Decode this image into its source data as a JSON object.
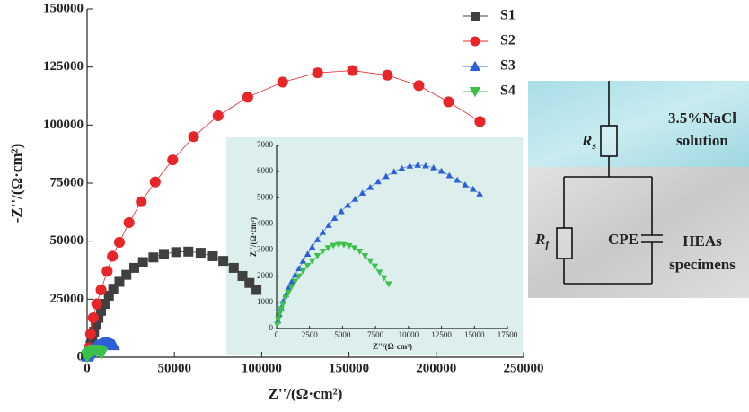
{
  "chart_data": [
    {
      "type": "line",
      "xlabel": "Z''/(Ω·cm²)",
      "ylabel": "-Z''/(Ω·cm²)",
      "xlim": [
        0,
        250000
      ],
      "ylim": [
        0,
        150000
      ],
      "xticks": [
        0,
        50000,
        100000,
        150000,
        200000,
        250000
      ],
      "yticks": [
        0,
        25000,
        50000,
        75000,
        100000,
        125000,
        150000
      ],
      "legend": "upper right",
      "series": [
        {
          "name": "S1",
          "color": "#404040",
          "marker": "square",
          "x": [
            1000,
            2000,
            3000,
            4000,
            5000,
            6500,
            8000,
            10000,
            12500,
            15000,
            18500,
            22500,
            27000,
            32000,
            38000,
            44000,
            51000,
            58000,
            65000,
            72000,
            78000,
            84000,
            89000,
            93000,
            97000
          ],
          "values": [
            2000,
            5000,
            8000,
            11000,
            14000,
            17000,
            20000,
            23000,
            26500,
            29500,
            32500,
            35500,
            38500,
            41000,
            43000,
            44500,
            45300,
            45500,
            45000,
            43500,
            41500,
            38500,
            35000,
            32000,
            29000
          ]
        },
        {
          "name": "S2",
          "color": "#e8262a",
          "marker": "circle",
          "x": [
            1000,
            2000,
            3500,
            5500,
            8000,
            11500,
            14500,
            18500,
            24000,
            31000,
            39000,
            49000,
            61000,
            75000,
            92000,
            112000,
            132000,
            152000,
            172000,
            190000,
            207000,
            225000
          ],
          "values": [
            4000,
            10000,
            17000,
            23000,
            29000,
            37000,
            43500,
            49500,
            58000,
            67000,
            75500,
            85000,
            95000,
            104000,
            112000,
            118500,
            122500,
            123500,
            121500,
            117000,
            110000,
            101500
          ]
        },
        {
          "name": "S3",
          "color": "#2f5fd8",
          "marker": "triangle-up",
          "x": [
            100,
            200,
            350,
            500,
            700,
            900,
            1150,
            1400,
            1700,
            2000,
            2350,
            2700,
            3100,
            3500,
            3950,
            4400,
            4900,
            5400,
            5950,
            6500,
            7100,
            7700,
            8300,
            8900,
            9500,
            10100,
            10700,
            11300,
            11900,
            12500,
            13100,
            13700,
            14300,
            14900,
            15400
          ],
          "values": [
            300,
            550,
            800,
            1050,
            1300,
            1550,
            1800,
            2050,
            2300,
            2580,
            2850,
            3120,
            3400,
            3680,
            3950,
            4220,
            4480,
            4720,
            4950,
            5180,
            5400,
            5620,
            5820,
            6000,
            6130,
            6220,
            6250,
            6230,
            6150,
            6020,
            5850,
            5680,
            5500,
            5330,
            5150
          ]
        },
        {
          "name": "S4",
          "color": "#3cc04a",
          "marker": "triangle-down",
          "x": [
            50,
            120,
            220,
            350,
            500,
            700,
            900,
            1150,
            1400,
            1700,
            2000,
            2350,
            2700,
            3100,
            3500,
            3900,
            4300,
            4700,
            5100,
            5500,
            5900,
            6300,
            6700,
            7100,
            7450,
            7800,
            8150,
            8500
          ],
          "values": [
            150,
            350,
            550,
            750,
            950,
            1180,
            1380,
            1600,
            1800,
            2000,
            2200,
            2400,
            2580,
            2780,
            2950,
            3080,
            3170,
            3210,
            3200,
            3160,
            3080,
            2950,
            2780,
            2580,
            2380,
            2150,
            1930,
            1700
          ]
        }
      ]
    },
    {
      "type": "line",
      "xlabel": "Z''/(Ω·cm²)",
      "ylabel": "Z''/(Ω·cm²)",
      "xlim": [
        0,
        17500
      ],
      "ylim": [
        0,
        7000
      ],
      "xticks": [
        0,
        2500,
        5000,
        7500,
        10000,
        12500,
        15000,
        17500
      ],
      "yticks": [
        0,
        1000,
        2000,
        3000,
        4000,
        5000,
        6000,
        7000
      ],
      "series": [
        {
          "color": "#2f5fd8",
          "marker": "triangle-up",
          "x": [
            100,
            200,
            350,
            500,
            700,
            900,
            1150,
            1400,
            1700,
            2000,
            2350,
            2700,
            3100,
            3500,
            3950,
            4400,
            4900,
            5400,
            5950,
            6500,
            7100,
            7700,
            8300,
            8900,
            9500,
            10100,
            10700,
            11300,
            11900,
            12500,
            13100,
            13700,
            14300,
            14900,
            15400
          ],
          "values": [
            300,
            550,
            800,
            1050,
            1300,
            1550,
            1800,
            2050,
            2300,
            2580,
            2850,
            3120,
            3400,
            3680,
            3950,
            4220,
            4480,
            4720,
            4950,
            5180,
            5400,
            5620,
            5820,
            6000,
            6130,
            6220,
            6250,
            6230,
            6150,
            6020,
            5850,
            5680,
            5500,
            5330,
            5150
          ]
        },
        {
          "color": "#3cc04a",
          "marker": "triangle-down",
          "x": [
            50,
            120,
            220,
            350,
            500,
            700,
            900,
            1150,
            1400,
            1700,
            2000,
            2350,
            2700,
            3100,
            3500,
            3900,
            4300,
            4700,
            5100,
            5500,
            5900,
            6300,
            6700,
            7100,
            7450,
            7800,
            8150,
            8500
          ],
          "values": [
            150,
            350,
            550,
            750,
            950,
            1180,
            1380,
            1600,
            1800,
            2000,
            2200,
            2400,
            2580,
            2780,
            2950,
            3080,
            3170,
            3210,
            3200,
            3160,
            3080,
            2950,
            2780,
            2580,
            2380,
            2150,
            1930,
            1700
          ]
        }
      ]
    }
  ],
  "circuit": {
    "rs": [
      "R",
      "s"
    ],
    "rf": [
      "R",
      "f"
    ],
    "cpe": "CPE",
    "electrolyte": [
      "3.5%NaCl",
      "solution"
    ],
    "specimen": [
      "HEAs",
      "specimens"
    ]
  }
}
